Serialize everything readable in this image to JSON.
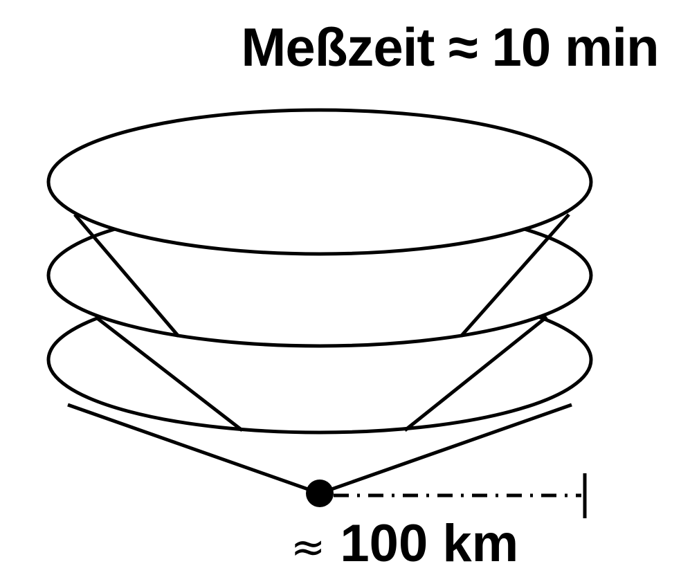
{
  "title": {
    "text": "Meßzeit ≈ 10 min"
  },
  "range": {
    "approx_symbol": "≈",
    "value_text": "100 km"
  },
  "colors": {
    "stroke": "#000000",
    "background": "#ffffff"
  }
}
